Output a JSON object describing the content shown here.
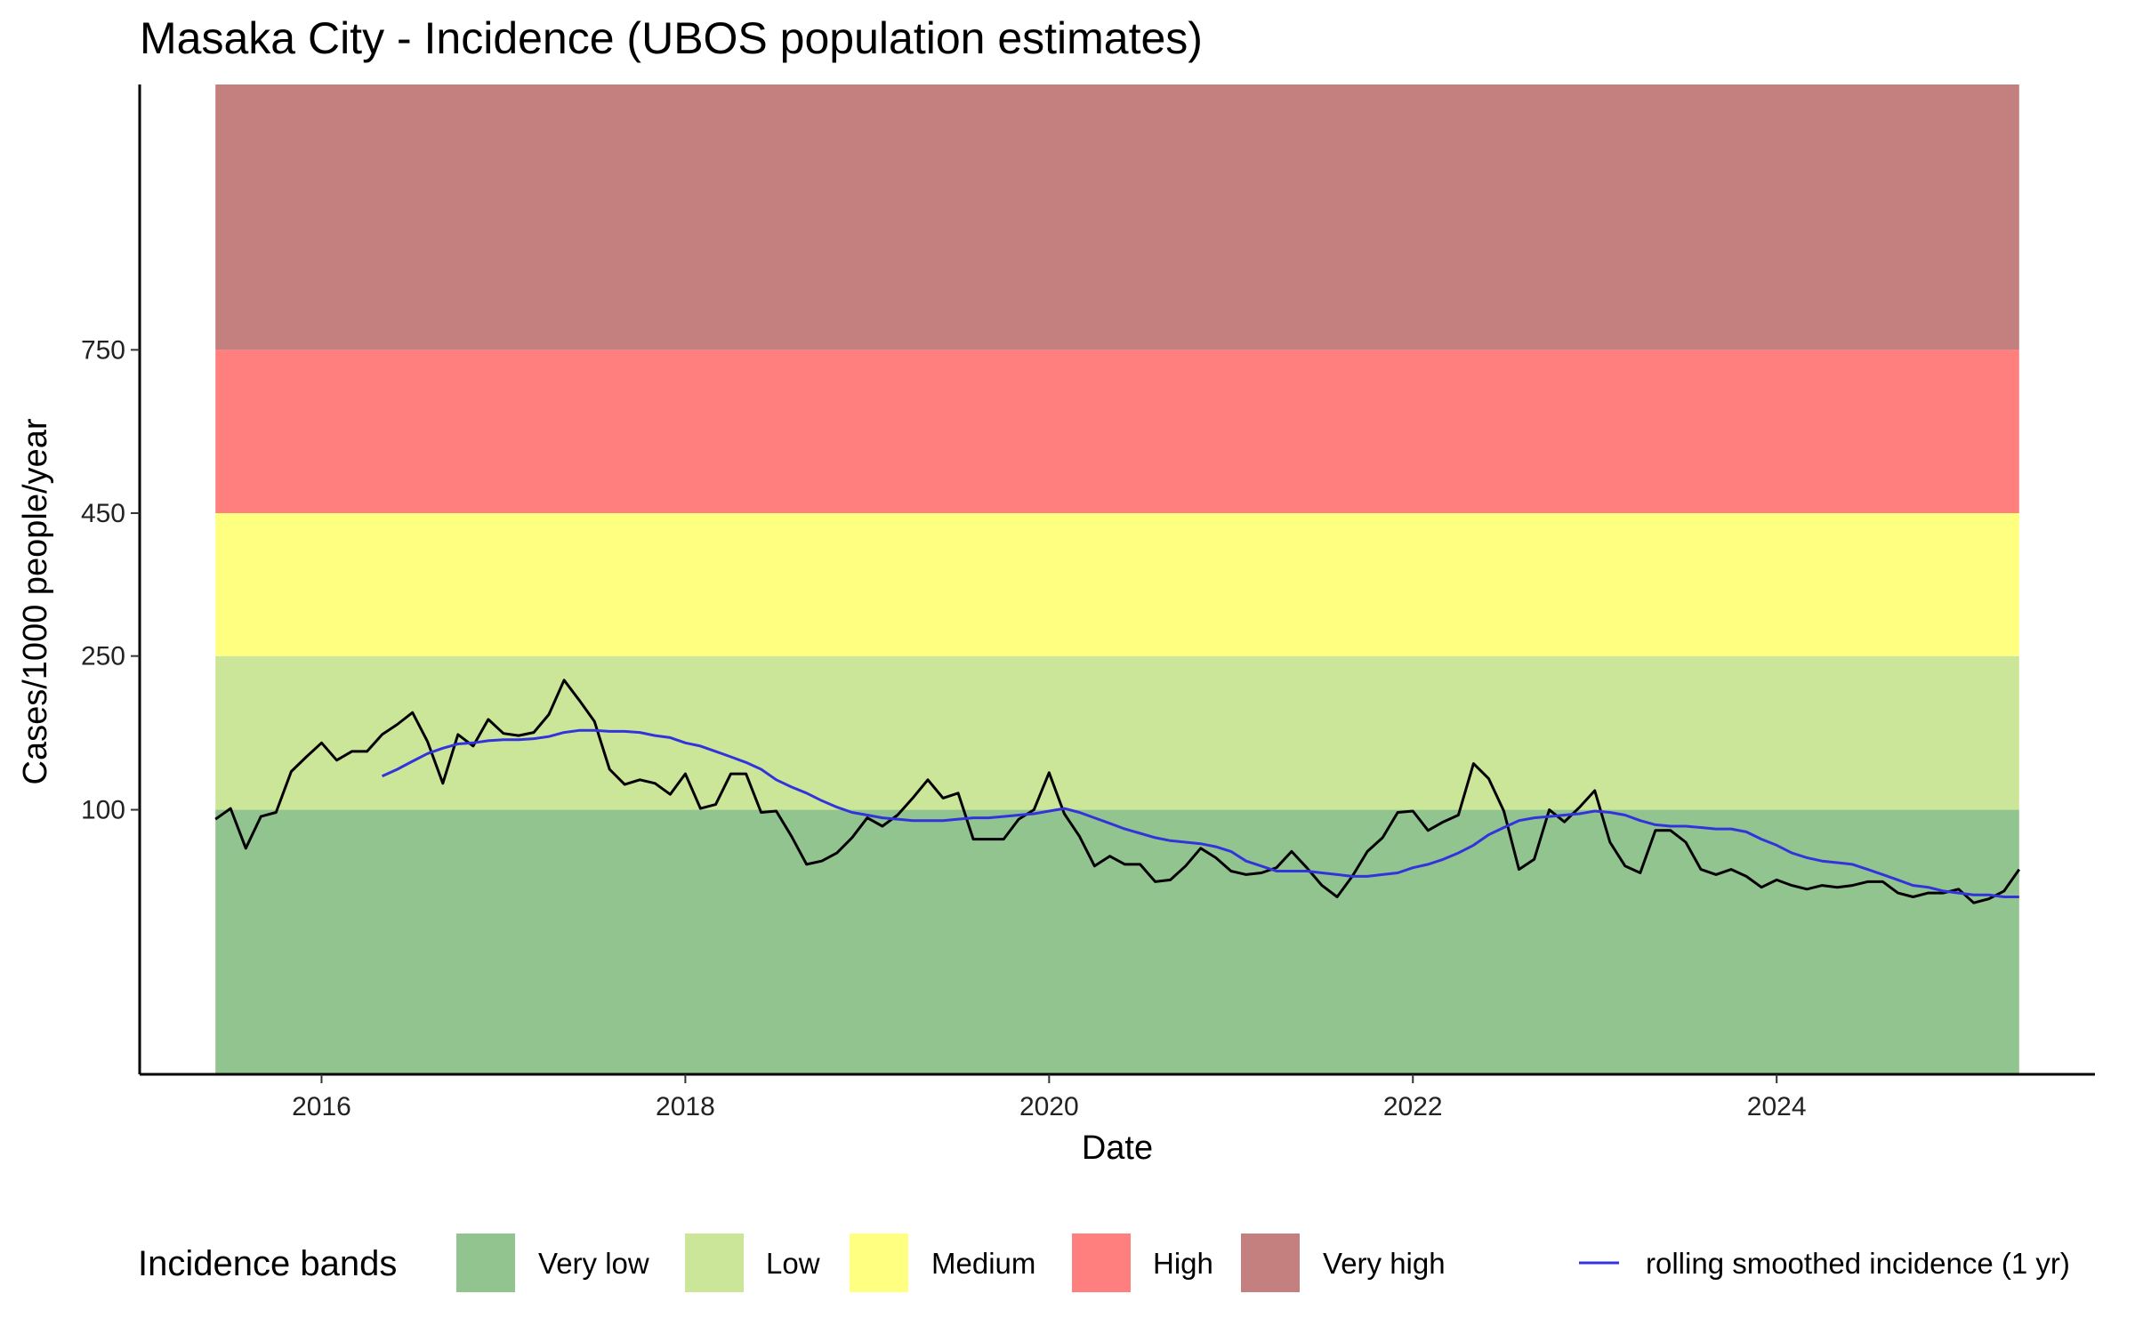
{
  "chart_data": {
    "type": "line",
    "title": "Masaka City - Incidence (UBOS population estimates)",
    "xlabel": "Date",
    "ylabel": "Cases/1000 people/year",
    "x_ticks": [
      "2016",
      "2018",
      "2020",
      "2022",
      "2024"
    ],
    "y_ticks": [
      100,
      250,
      450,
      750
    ],
    "y_scale": "sqrt",
    "ylim": [
      0,
      1400
    ],
    "grid": false,
    "legend_placement": "bottom",
    "bands": [
      {
        "name": "Very low",
        "from": 0,
        "to": 100,
        "color": "#91c48e"
      },
      {
        "name": "Low",
        "from": 100,
        "to": 250,
        "color": "#cce699"
      },
      {
        "name": "Medium",
        "from": 250,
        "to": 450,
        "color": "#ffff80"
      },
      {
        "name": "High",
        "from": 450,
        "to": 750,
        "color": "#ff7f7f"
      },
      {
        "name": "Very high",
        "from": 750,
        "to": 1400,
        "color": "#c47f7f"
      }
    ],
    "band_x_range": [
      "2015-06",
      "2025-05"
    ],
    "series": [
      {
        "color": "#000000",
        "x": [
          "2015-06",
          "2015-07",
          "2015-08",
          "2015-09",
          "2015-10",
          "2015-11",
          "2015-12",
          "2016-01",
          "2016-02",
          "2016-03",
          "2016-04",
          "2016-05",
          "2016-06",
          "2016-07",
          "2016-08",
          "2016-09",
          "2016-10",
          "2016-11",
          "2016-12",
          "2017-01",
          "2017-02",
          "2017-03",
          "2017-04",
          "2017-05",
          "2017-06",
          "2017-07",
          "2017-08",
          "2017-09",
          "2017-10",
          "2017-11",
          "2017-12",
          "2018-01",
          "2018-02",
          "2018-03",
          "2018-04",
          "2018-05",
          "2018-06",
          "2018-07",
          "2018-08",
          "2018-09",
          "2018-10",
          "2018-11",
          "2018-12",
          "2019-01",
          "2019-02",
          "2019-03",
          "2019-04",
          "2019-05",
          "2019-06",
          "2019-07",
          "2019-08",
          "2019-09",
          "2019-10",
          "2019-11",
          "2019-12",
          "2020-01",
          "2020-02",
          "2020-03",
          "2020-04",
          "2020-05",
          "2020-06",
          "2020-07",
          "2020-08",
          "2020-09",
          "2020-10",
          "2020-11",
          "2020-12",
          "2021-01",
          "2021-02",
          "2021-03",
          "2021-04",
          "2021-05",
          "2021-06",
          "2021-07",
          "2021-08",
          "2021-09",
          "2021-10",
          "2021-11",
          "2021-12",
          "2022-01",
          "2022-02",
          "2022-03",
          "2022-04",
          "2022-05",
          "2022-06",
          "2022-07",
          "2022-08",
          "2022-09",
          "2022-10",
          "2022-11",
          "2022-12",
          "2023-01",
          "2023-02",
          "2023-03",
          "2023-04",
          "2023-05",
          "2023-06",
          "2023-07",
          "2023-08",
          "2023-09",
          "2023-10",
          "2023-11",
          "2023-12",
          "2024-01",
          "2024-02",
          "2024-03",
          "2024-04",
          "2024-05",
          "2024-06",
          "2024-07",
          "2024-08",
          "2024-09",
          "2024-10",
          "2024-11",
          "2024-12",
          "2025-01",
          "2025-02",
          "2025-03",
          "2025-04",
          "2025-05"
        ],
        "values": [
          93,
          101,
          73,
          95,
          98,
          131,
          144,
          157,
          141,
          149,
          149,
          165,
          175,
          187,
          158,
          121,
          165,
          154,
          180,
          166,
          164,
          167,
          185,
          222,
          200,
          178,
          133,
          120,
          124,
          121,
          112,
          129,
          101,
          104,
          129,
          129,
          98,
          99,
          81,
          63,
          65,
          70,
          80,
          94,
          88,
          96,
          109,
          124,
          109,
          113,
          79,
          79,
          79,
          93,
          100,
          130,
          97,
          81,
          62,
          68,
          63,
          63,
          53,
          54,
          62,
          73,
          67,
          59,
          57,
          58,
          61,
          71,
          61,
          51,
          45,
          56,
          71,
          80,
          98,
          99,
          85,
          91,
          96,
          138,
          125,
          99,
          60,
          66,
          100,
          91,
          102,
          115,
          77,
          62,
          58,
          85,
          85,
          77,
          60,
          57,
          60,
          56,
          50,
          54,
          51,
          49,
          51,
          50,
          51,
          53,
          53,
          47,
          45,
          47,
          47,
          49,
          42,
          44,
          48,
          60
        ]
      },
      {
        "name": "rolling smoothed incidence (1 yr)",
        "color": "#3333dd",
        "x": [
          "2016-05",
          "2016-06",
          "2016-07",
          "2016-08",
          "2016-09",
          "2016-10",
          "2016-11",
          "2016-12",
          "2017-01",
          "2017-02",
          "2017-03",
          "2017-04",
          "2017-05",
          "2017-06",
          "2017-07",
          "2017-08",
          "2017-09",
          "2017-10",
          "2017-11",
          "2017-12",
          "2018-01",
          "2018-02",
          "2018-03",
          "2018-04",
          "2018-05",
          "2018-06",
          "2018-07",
          "2018-08",
          "2018-09",
          "2018-10",
          "2018-11",
          "2018-12",
          "2019-01",
          "2019-02",
          "2019-03",
          "2019-04",
          "2019-05",
          "2019-06",
          "2019-07",
          "2019-08",
          "2019-09",
          "2019-10",
          "2019-11",
          "2019-12",
          "2020-01",
          "2020-02",
          "2020-03",
          "2020-04",
          "2020-05",
          "2020-06",
          "2020-07",
          "2020-08",
          "2020-09",
          "2020-10",
          "2020-11",
          "2020-12",
          "2021-01",
          "2021-02",
          "2021-03",
          "2021-04",
          "2021-05",
          "2021-06",
          "2021-07",
          "2021-08",
          "2021-09",
          "2021-10",
          "2021-11",
          "2021-12",
          "2022-01",
          "2022-02",
          "2022-03",
          "2022-04",
          "2022-05",
          "2022-06",
          "2022-07",
          "2022-08",
          "2022-09",
          "2022-10",
          "2022-11",
          "2022-12",
          "2023-01",
          "2023-02",
          "2023-03",
          "2023-04",
          "2023-05",
          "2023-06",
          "2023-07",
          "2023-08",
          "2023-09",
          "2023-10",
          "2023-11",
          "2023-12",
          "2024-01",
          "2024-02",
          "2024-03",
          "2024-04",
          "2024-05",
          "2024-06",
          "2024-07",
          "2024-08",
          "2024-09",
          "2024-10",
          "2024-11",
          "2024-12",
          "2025-01",
          "2025-02",
          "2025-03",
          "2025-04",
          "2025-05"
        ],
        "values": [
          127,
          133,
          140,
          147,
          152,
          156,
          157,
          159,
          160,
          160,
          161,
          163,
          167,
          169,
          169,
          168,
          168,
          167,
          164,
          162,
          157,
          154,
          149,
          144,
          139,
          133,
          124,
          118,
          113,
          107,
          102,
          98,
          96,
          94,
          93,
          92,
          92,
          92,
          93,
          94,
          94,
          95,
          96,
          97,
          99,
          101,
          98,
          94,
          90,
          86,
          83,
          80,
          78,
          77,
          76,
          74,
          71,
          65,
          62,
          59,
          59,
          59,
          58,
          57,
          56,
          56,
          57,
          58,
          61,
          63,
          66,
          70,
          75,
          82,
          87,
          92,
          94,
          95,
          96,
          97,
          99,
          98,
          96,
          92,
          89,
          88,
          88,
          87,
          86,
          86,
          84,
          79,
          75,
          70,
          67,
          65,
          64,
          63,
          60,
          57,
          54,
          51,
          50,
          48,
          47,
          46,
          46,
          45,
          45
        ]
      }
    ],
    "legend": {
      "title": "Incidence bands",
      "items": [
        "Very low",
        "Low",
        "Medium",
        "High",
        "Very high"
      ],
      "line_item": "rolling smoothed incidence (1 yr)"
    }
  }
}
